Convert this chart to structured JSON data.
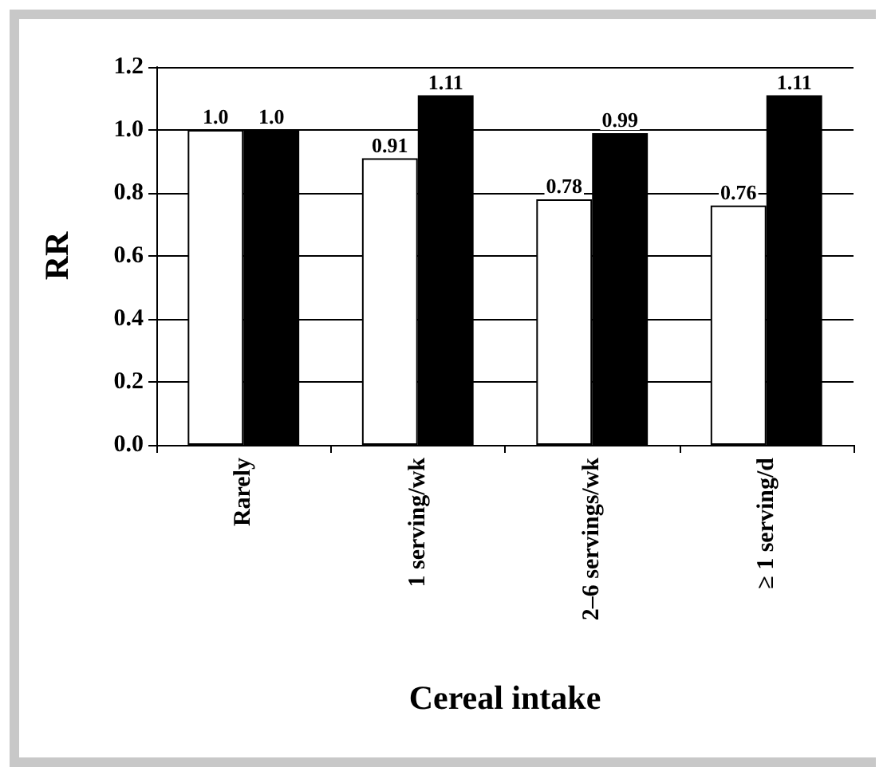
{
  "chart_data": {
    "type": "bar",
    "xlabel": "Cereal intake",
    "ylabel": "RR",
    "categories": [
      "Rarely",
      "1 serving/wk",
      "2–6 servings/wk",
      "≥ 1 serving/d"
    ],
    "series": [
      {
        "color": "#ffffff",
        "values": [
          1.0,
          0.91,
          0.78,
          0.76
        ],
        "value_labels": [
          "1.0",
          "0.91",
          "0.78",
          "0.76"
        ]
      },
      {
        "color": "#000000",
        "values": [
          1.0,
          1.11,
          0.99,
          1.11
        ],
        "value_labels": [
          "1.0",
          "1.11",
          "0.99",
          "1.11"
        ]
      }
    ],
    "ylim": [
      0,
      1.2
    ],
    "yticks": [
      {
        "value": 0,
        "label": "0.0"
      },
      {
        "value": 0.2,
        "label": "0.2"
      },
      {
        "value": 0.4,
        "label": "0.4"
      },
      {
        "value": 0.6,
        "label": "0.6"
      },
      {
        "value": 0.8,
        "label": "0.8"
      },
      {
        "value": 1.0,
        "label": "1.0"
      },
      {
        "value": 1.2,
        "label": "1.2"
      }
    ],
    "grid": "y"
  }
}
